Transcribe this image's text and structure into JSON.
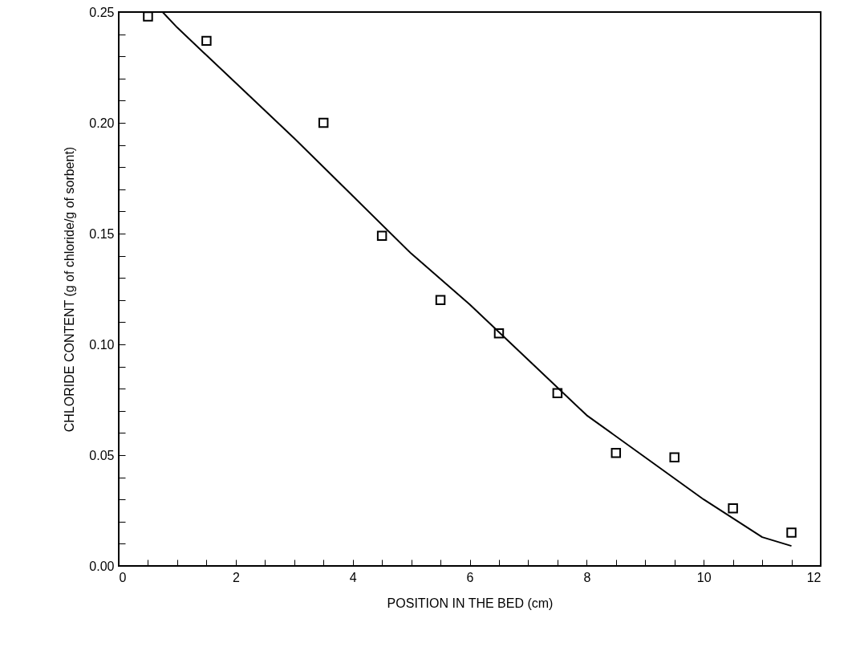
{
  "chart_data": {
    "type": "scatter",
    "xlabel": "POSITION IN THE BED (cm)",
    "ylabel": "CHLORIDE CONTENT (g of chloride/g of sorbent)",
    "xlim": [
      0,
      12
    ],
    "ylim": [
      0,
      0.25
    ],
    "xticks": [
      0,
      {
        "value": 0.5,
        "label": null
      },
      {
        "value": 1,
        "label": null
      },
      {
        "value": 1.5,
        "label": null
      },
      2,
      {
        "value": 2.5,
        "label": null
      },
      {
        "value": 3,
        "label": null
      },
      {
        "value": 3.5,
        "label": null
      },
      4,
      {
        "value": 4.5,
        "label": null
      },
      {
        "value": 5,
        "label": null
      },
      {
        "value": 5.5,
        "label": null
      },
      6,
      {
        "value": 6.5,
        "label": null
      },
      {
        "value": 7,
        "label": null
      },
      {
        "value": 7.5,
        "label": null
      },
      8,
      {
        "value": 8.5,
        "label": null
      },
      {
        "value": 9,
        "label": null
      },
      {
        "value": 9.5,
        "label": null
      },
      10,
      {
        "value": 10.5,
        "label": null
      },
      {
        "value": 11,
        "label": null
      },
      {
        "value": 11.5,
        "label": null
      },
      12
    ],
    "yticks": [
      {
        "value": 0,
        "label": "0.00"
      },
      {
        "value": 0.01,
        "label": null
      },
      {
        "value": 0.02,
        "label": null
      },
      {
        "value": 0.03,
        "label": null
      },
      {
        "value": 0.04,
        "label": null
      },
      {
        "value": 0.05,
        "label": "0.05"
      },
      {
        "value": 0.06,
        "label": null
      },
      {
        "value": 0.07,
        "label": null
      },
      {
        "value": 0.08,
        "label": null
      },
      {
        "value": 0.09,
        "label": null
      },
      {
        "value": 0.1,
        "label": "0.10"
      },
      {
        "value": 0.11,
        "label": null
      },
      {
        "value": 0.12,
        "label": null
      },
      {
        "value": 0.13,
        "label": null
      },
      {
        "value": 0.14,
        "label": null
      },
      {
        "value": 0.15,
        "label": "0.15"
      },
      {
        "value": 0.16,
        "label": null
      },
      {
        "value": 0.17,
        "label": null
      },
      {
        "value": 0.18,
        "label": null
      },
      {
        "value": 0.19,
        "label": null
      },
      {
        "value": 0.2,
        "label": "0.20"
      },
      {
        "value": 0.21,
        "label": null
      },
      {
        "value": 0.22,
        "label": null
      },
      {
        "value": 0.23,
        "label": null
      },
      {
        "value": 0.24,
        "label": null
      },
      {
        "value": 0.25,
        "label": "0.25"
      }
    ],
    "grid": false,
    "series": [
      {
        "marker": "square",
        "color": "#000000",
        "x": [
          0.5,
          1.5,
          3.5,
          4.5,
          5.5,
          6.5,
          7.5,
          8.5,
          9.5,
          10.5,
          11.5
        ],
        "values": [
          0.248,
          0.237,
          0.2,
          0.149,
          0.12,
          0.105,
          0.078,
          0.051,
          0.049,
          0.026,
          0.015
        ]
      },
      {
        "type": "line",
        "marker": "none",
        "line_style": "solid",
        "color": "#000000",
        "x": [
          0.75,
          1,
          2,
          3,
          4,
          5,
          6,
          7,
          8,
          9,
          10,
          11,
          11.5
        ],
        "values": [
          0.25,
          0.243,
          0.218,
          0.193,
          0.167,
          0.141,
          0.118,
          0.093,
          0.068,
          0.049,
          0.03,
          0.013,
          0.009
        ]
      }
    ]
  }
}
